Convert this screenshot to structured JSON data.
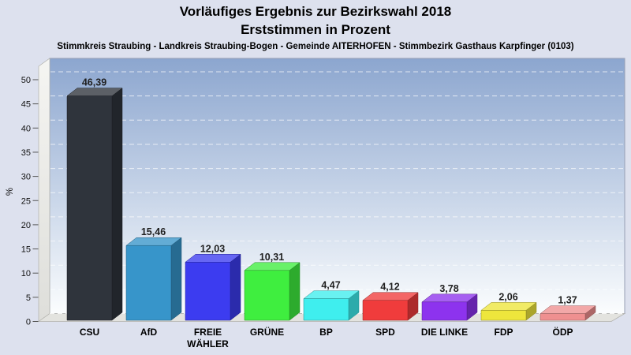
{
  "chart_data": {
    "type": "bar",
    "style": "3d-columns",
    "title_line1": "Vorläufiges Ergebnis zur Bezirkswahl 2018",
    "title_line2": "Erststimmen in Prozent",
    "subtitle": "Stimmkreis Straubing - Landkreis Straubing-Bogen - Gemeinde AITERHOFEN - Stimmbezirk Gasthaus Karpfinger (0103)",
    "categories": [
      "CSU",
      "AfD",
      "FREIE\nWÄHLER",
      "GRÜNE",
      "BP",
      "SPD",
      "DIE LINKE",
      "FDP",
      "ÖDP"
    ],
    "values": [
      46.39,
      15.46,
      12.03,
      10.31,
      4.47,
      4.12,
      3.78,
      2.06,
      1.37
    ],
    "value_labels": [
      "46,39",
      "15,46",
      "12,03",
      "10,31",
      "4,47",
      "4,12",
      "3,78",
      "2,06",
      "1,37"
    ],
    "bar_colors": [
      "#2f343c",
      "#3795ca",
      "#3c3cf0",
      "#3fee3f",
      "#3feeee",
      "#f03c3c",
      "#8d33ee",
      "#eee63c",
      "#ef9090"
    ],
    "ylabel": "%",
    "ylim": [
      0,
      50
    ],
    "ytick_step": 5,
    "ytick_labels": [
      "0",
      "5",
      "10",
      "15",
      "20",
      "25",
      "30",
      "35",
      "40",
      "45",
      "50"
    ],
    "grid": "dashed-horizontal",
    "legend": false,
    "decimal_separator": ",",
    "colors": {
      "page_bg": "#dde1ee",
      "plot_gradient_top": "#8ca6cf",
      "plot_gradient_bottom": "#fbfdfe",
      "wall_light": "#f5f5f2",
      "wall_dark": "#dededa",
      "floor": "#e3e3df",
      "grid_line": "#ffffff",
      "axis_text": "#111111",
      "value_text": "#1f1f1f",
      "category_text": "#000000"
    }
  }
}
